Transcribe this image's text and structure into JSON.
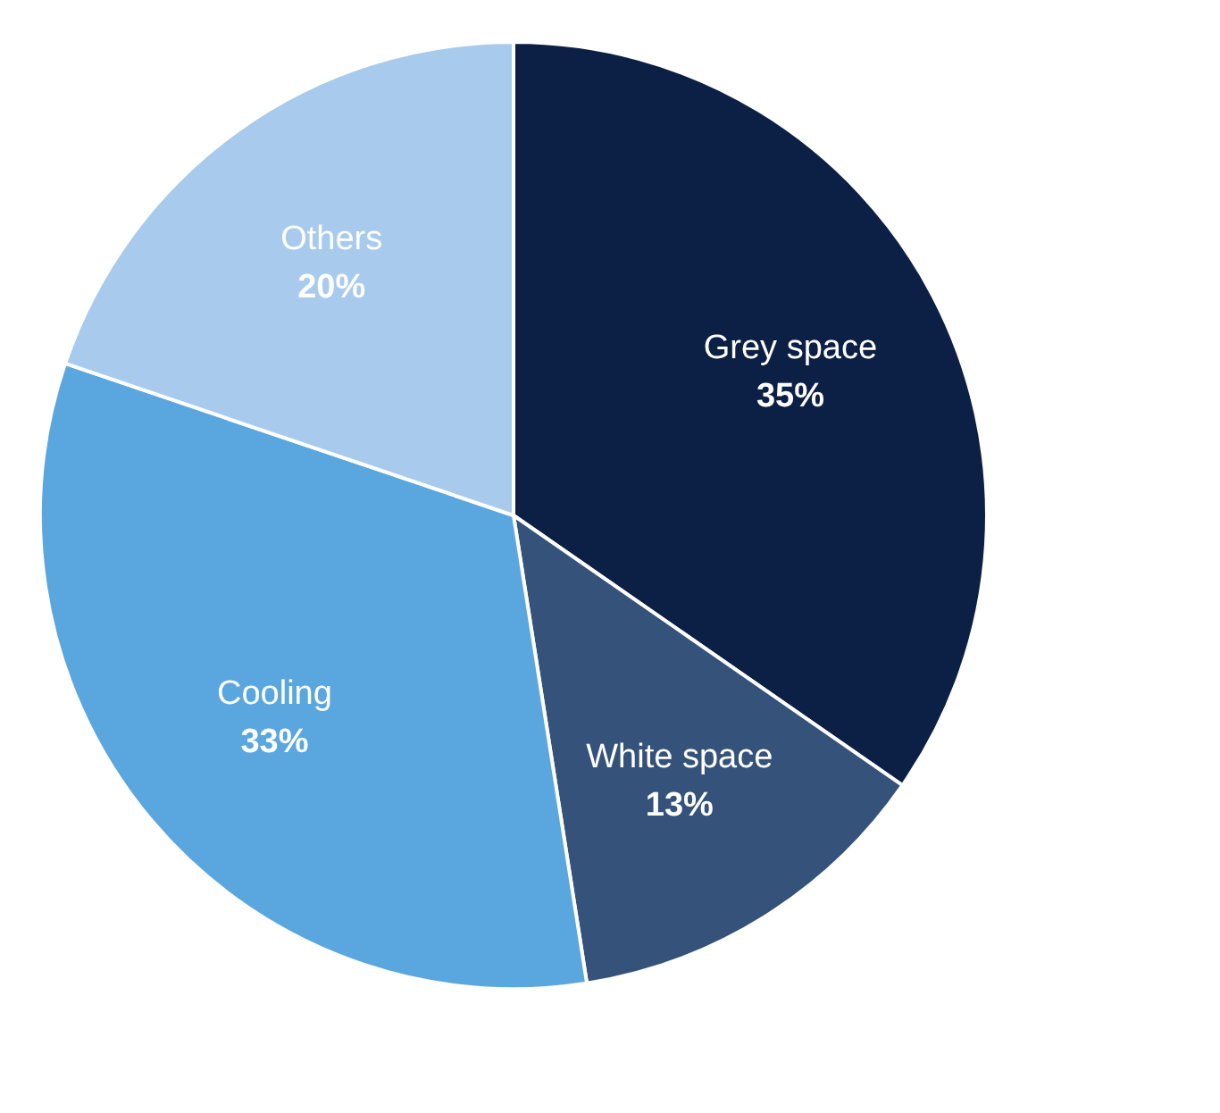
{
  "chart_data": {
    "type": "pie",
    "categories": [
      "Grey space",
      "White space",
      "Cooling",
      "Others"
    ],
    "values": [
      35,
      13,
      33,
      20
    ],
    "value_labels": [
      "35%",
      "13%",
      "33%",
      "20%"
    ],
    "colors": [
      "#0c1f45",
      "#34527a",
      "#5aa6df",
      "#a8cbed"
    ]
  }
}
